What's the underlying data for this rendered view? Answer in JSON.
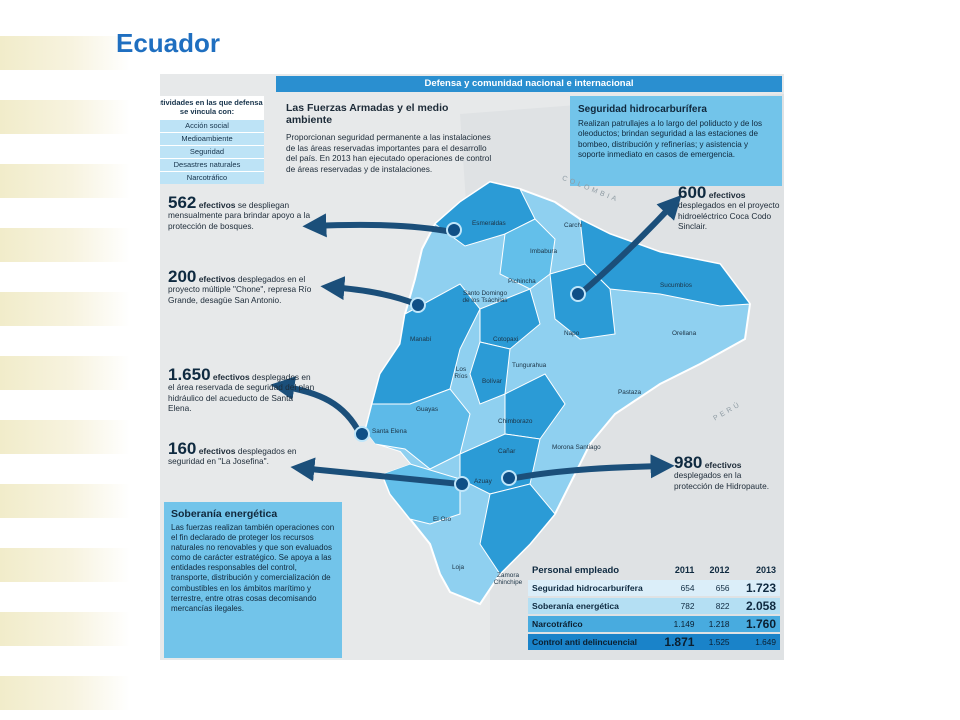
{
  "title": "Ecuador",
  "header": "Defensa y comunidad nacional e internacional",
  "activities": {
    "title": "Actividades en las que defensa se vincula con:",
    "items": [
      "Acción social",
      "Medioambiente",
      "Seguridad",
      "Desastres naturales",
      "Narcotráfico"
    ]
  },
  "environment": {
    "title": "Las Fuerzas Armadas y el medio ambiente",
    "text": "Proporcionan seguridad permanente a las instalaciones de las áreas reservadas importantes para el desarrollo del país. En 2013 han ejecutado operaciones de control de áreas reservadas y de instalaciones."
  },
  "security": {
    "title": "Seguridad hidrocarburífera",
    "text": "Realizan patrullajes a lo largo del poliducto y de los oleoductos; brindan seguridad a las estaciones de bombeo, distribución y refinerías; y asistencia y soporte inmediato en casos de emergencia."
  },
  "stats": [
    {
      "number": "562",
      "unit": "efectivos",
      "rest": " se despliegan mensualmente para brindar  apoyo a la protección de bosques."
    },
    {
      "number": "200",
      "unit": "efectivos",
      "rest": " desplegados en el proyecto múltiple \"Chone\", represa Río Grande, desagüe San Antonio."
    },
    {
      "number": "1.650",
      "unit": "efectivos",
      "rest": " desplegados en el área reservada de seguridad del plan hidráulico del acueducto de Santa Elena."
    },
    {
      "number": "160",
      "unit": "efectivos",
      "rest": " desplegados en seguridad en \"La Josefina\"."
    },
    {
      "number": "600",
      "unit": "efectivos",
      "rest": " desplegados en el proyecto hidroeléctrico Coca Codo Sinclair."
    },
    {
      "number": "980",
      "unit": "efectivos",
      "rest": " desplegados en la protección de Hidropaute."
    }
  ],
  "sovereignty": {
    "title": "Soberanía energética",
    "text": "Las fuerzas realizan también operaciones con el fin declarado de proteger los recursos naturales no renovables y que son evaluados como de carácter estratégico. Se apoya a las entidades responsables del control, transporte, distribución y comercialización de combustibles en los ámbitos marítimo y terrestre, entre otras cosas decomisando mercancías ilegales."
  },
  "table": {
    "headers": [
      "Personal empleado",
      "2011",
      "2012",
      "2013"
    ],
    "rows": [
      {
        "name": "Seguridad hidrocarburífera",
        "v2011": "654",
        "v2012": "656",
        "v2013": "1.723"
      },
      {
        "name": "Soberanía energética",
        "v2011": "782",
        "v2012": "822",
        "v2013": "2.058"
      },
      {
        "name": "Narcotráfico",
        "v2011": "1.149",
        "v2012": "1.218",
        "v2013": "1.760"
      },
      {
        "name": "Control anti delincuencial",
        "v2011": "1.871",
        "v2012": "1.525",
        "v2013": "1.649"
      }
    ]
  },
  "map": {
    "countries": [
      "COLOMBIA",
      "PERÚ"
    ],
    "provinces": [
      "Esmeraldas",
      "Carchi",
      "Imbabura",
      "Sucumbíos",
      "Pichincha",
      "Santo Domingo de los Tsáchilas",
      "Napo",
      "Orellana",
      "Manabí",
      "Cotopaxi",
      "Los Ríos",
      "Tungurahua",
      "Bolívar",
      "Pastaza",
      "Guayas",
      "Chimborazo",
      "Santa Elena",
      "Cañar",
      "Morona Santiago",
      "Azuay",
      "El Oro",
      "Loja",
      "Zamora Chinchipe"
    ]
  },
  "colors": {
    "title": "#1f6fc0",
    "header_bar": "#2a8fd0",
    "box": "#72c4ea",
    "map_dark": "#2b9bd6",
    "map_light": "#8fd0f0",
    "background": "#e7e9ea"
  }
}
